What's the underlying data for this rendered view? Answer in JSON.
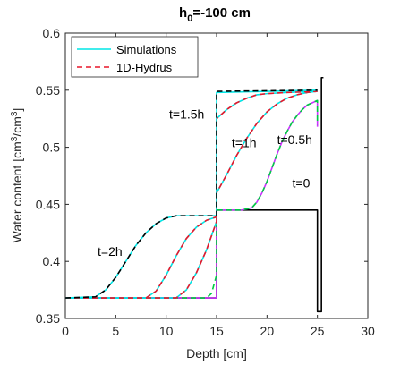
{
  "chart_data": {
    "type": "line",
    "title_main": "h",
    "title_sub": "0",
    "title_rest": "=-100 cm",
    "xlabel": "Depth [cm]",
    "ylabel_main": "Water content [cm",
    "ylabel_sup1": "3",
    "ylabel_mid": "/cm",
    "ylabel_sup2": "3",
    "ylabel_end": "]",
    "xlim": [
      0,
      30
    ],
    "ylim": [
      0.35,
      0.6
    ],
    "xticks": [
      "0",
      "5",
      "10",
      "15",
      "20",
      "25",
      "30"
    ],
    "yticks": [
      "0.35",
      "0.4",
      "0.45",
      "0.5",
      "0.55",
      "0.6"
    ],
    "grid": false,
    "legend_position": "top-left",
    "legend": [
      {
        "label": "Simulations",
        "color": "#00e5e5",
        "style": "solid"
      },
      {
        "label": "1D-Hydrus",
        "color": "#e8162a",
        "style": "dashed"
      }
    ],
    "annotations": [
      {
        "text": "t=1.5h",
        "x": 10.3,
        "y": 0.525
      },
      {
        "text": "t=1h",
        "x": 16.5,
        "y": 0.5
      },
      {
        "text": "t=0.5h",
        "x": 21.0,
        "y": 0.503
      },
      {
        "text": "t=0",
        "x": 22.5,
        "y": 0.465
      },
      {
        "text": "t=2h",
        "x": 3.2,
        "y": 0.405
      }
    ],
    "series": [
      {
        "time": "t=0",
        "color": "#000000",
        "dash": "solid",
        "points": [
          [
            0,
            0.368
          ],
          [
            15,
            0.368
          ],
          [
            15,
            0.445
          ],
          [
            25,
            0.445
          ],
          [
            25,
            0.356
          ],
          [
            25.4,
            0.356
          ],
          [
            25.4,
            0.561
          ],
          [
            25.6,
            0.561
          ]
        ]
      },
      {
        "time": "t=0.5h",
        "color": "#cc33ff",
        "dash": "solid",
        "points": [
          [
            0,
            0.368
          ],
          [
            15,
            0.368
          ],
          [
            15,
            0.445
          ],
          [
            17.5,
            0.445
          ],
          [
            18.5,
            0.447
          ],
          [
            19,
            0.452
          ],
          [
            19.5,
            0.46
          ],
          [
            20,
            0.47
          ],
          [
            20.5,
            0.482
          ],
          [
            21,
            0.494
          ],
          [
            21.5,
            0.505
          ],
          [
            22,
            0.514
          ],
          [
            22.5,
            0.522
          ],
          [
            23,
            0.528
          ],
          [
            23.5,
            0.533
          ],
          [
            24,
            0.537
          ],
          [
            24.5,
            0.539
          ],
          [
            25,
            0.541
          ],
          [
            25,
            0.518
          ]
        ]
      },
      {
        "time": "t=0.5h",
        "color": "#00cc44",
        "dash": "dashed",
        "points": [
          [
            0,
            0.368
          ],
          [
            14,
            0.368
          ],
          [
            14.5,
            0.372
          ],
          [
            15,
            0.388
          ],
          [
            15,
            0.445
          ],
          [
            17.5,
            0.445
          ],
          [
            18.5,
            0.447
          ],
          [
            19,
            0.452
          ],
          [
            19.5,
            0.46
          ],
          [
            20,
            0.47
          ],
          [
            20.5,
            0.482
          ],
          [
            21,
            0.494
          ],
          [
            21.5,
            0.505
          ],
          [
            22,
            0.514
          ],
          [
            22.5,
            0.522
          ],
          [
            23,
            0.528
          ],
          [
            23.5,
            0.533
          ],
          [
            24,
            0.537
          ],
          [
            24.5,
            0.539
          ],
          [
            25,
            0.541
          ],
          [
            25,
            0.52
          ]
        ]
      },
      {
        "time": "t=1h",
        "color": "#00e5e5",
        "dash": "solid",
        "points": [
          [
            0,
            0.368
          ],
          [
            11,
            0.368
          ],
          [
            12,
            0.375
          ],
          [
            13,
            0.39
          ],
          [
            14,
            0.41
          ],
          [
            15,
            0.435
          ],
          [
            15,
            0.46
          ],
          [
            16,
            0.476
          ],
          [
            17,
            0.493
          ],
          [
            18,
            0.508
          ],
          [
            19,
            0.521
          ],
          [
            20,
            0.531
          ],
          [
            21,
            0.538
          ],
          [
            22,
            0.543
          ],
          [
            23,
            0.546
          ],
          [
            24,
            0.548
          ],
          [
            25,
            0.549
          ]
        ]
      },
      {
        "time": "t=1h",
        "color": "#e8162a",
        "dash": "dashed",
        "points": [
          [
            0,
            0.368
          ],
          [
            11,
            0.368
          ],
          [
            12,
            0.375
          ],
          [
            13,
            0.39
          ],
          [
            14,
            0.41
          ],
          [
            15,
            0.435
          ],
          [
            15,
            0.46
          ],
          [
            16,
            0.476
          ],
          [
            17,
            0.493
          ],
          [
            18,
            0.508
          ],
          [
            19,
            0.521
          ],
          [
            20,
            0.531
          ],
          [
            21,
            0.538
          ],
          [
            22,
            0.543
          ],
          [
            23,
            0.546
          ],
          [
            24,
            0.548
          ],
          [
            25,
            0.549
          ]
        ]
      },
      {
        "time": "t=1.5h",
        "color": "#00e5e5",
        "dash": "solid",
        "points": [
          [
            0,
            0.368
          ],
          [
            8,
            0.368
          ],
          [
            9,
            0.374
          ],
          [
            10,
            0.388
          ],
          [
            11,
            0.405
          ],
          [
            12,
            0.42
          ],
          [
            13,
            0.43
          ],
          [
            14,
            0.436
          ],
          [
            15,
            0.439
          ],
          [
            15,
            0.525
          ],
          [
            16,
            0.533
          ],
          [
            17,
            0.539
          ],
          [
            18,
            0.543
          ],
          [
            19,
            0.546
          ],
          [
            20,
            0.547
          ],
          [
            22,
            0.548
          ],
          [
            25,
            0.549
          ]
        ]
      },
      {
        "time": "t=1.5h",
        "color": "#e8162a",
        "dash": "dashed",
        "points": [
          [
            0,
            0.368
          ],
          [
            8,
            0.368
          ],
          [
            9,
            0.374
          ],
          [
            10,
            0.388
          ],
          [
            11,
            0.405
          ],
          [
            12,
            0.42
          ],
          [
            13,
            0.43
          ],
          [
            14,
            0.436
          ],
          [
            15,
            0.439
          ],
          [
            15,
            0.525
          ],
          [
            16,
            0.533
          ],
          [
            17,
            0.539
          ],
          [
            18,
            0.543
          ],
          [
            19,
            0.546
          ],
          [
            20,
            0.547
          ],
          [
            22,
            0.548
          ],
          [
            25,
            0.549
          ]
        ]
      },
      {
        "time": "t=2h",
        "color": "#00e5e5",
        "dash": "solid",
        "points": [
          [
            0,
            0.368
          ],
          [
            3,
            0.369
          ],
          [
            4,
            0.375
          ],
          [
            5,
            0.386
          ],
          [
            6,
            0.4
          ],
          [
            7,
            0.414
          ],
          [
            8,
            0.425
          ],
          [
            9,
            0.433
          ],
          [
            10,
            0.438
          ],
          [
            11,
            0.44
          ],
          [
            15,
            0.44
          ],
          [
            15,
            0.548
          ],
          [
            25,
            0.55
          ]
        ]
      },
      {
        "time": "t=2h",
        "color": "#000000",
        "dash": "dashed",
        "points": [
          [
            0,
            0.368
          ],
          [
            3,
            0.369
          ],
          [
            4,
            0.375
          ],
          [
            5,
            0.386
          ],
          [
            6,
            0.4
          ],
          [
            7,
            0.414
          ],
          [
            8,
            0.425
          ],
          [
            9,
            0.433
          ],
          [
            10,
            0.438
          ],
          [
            11,
            0.44
          ],
          [
            15,
            0.44
          ],
          [
            15,
            0.549
          ],
          [
            25,
            0.55
          ]
        ]
      }
    ]
  }
}
